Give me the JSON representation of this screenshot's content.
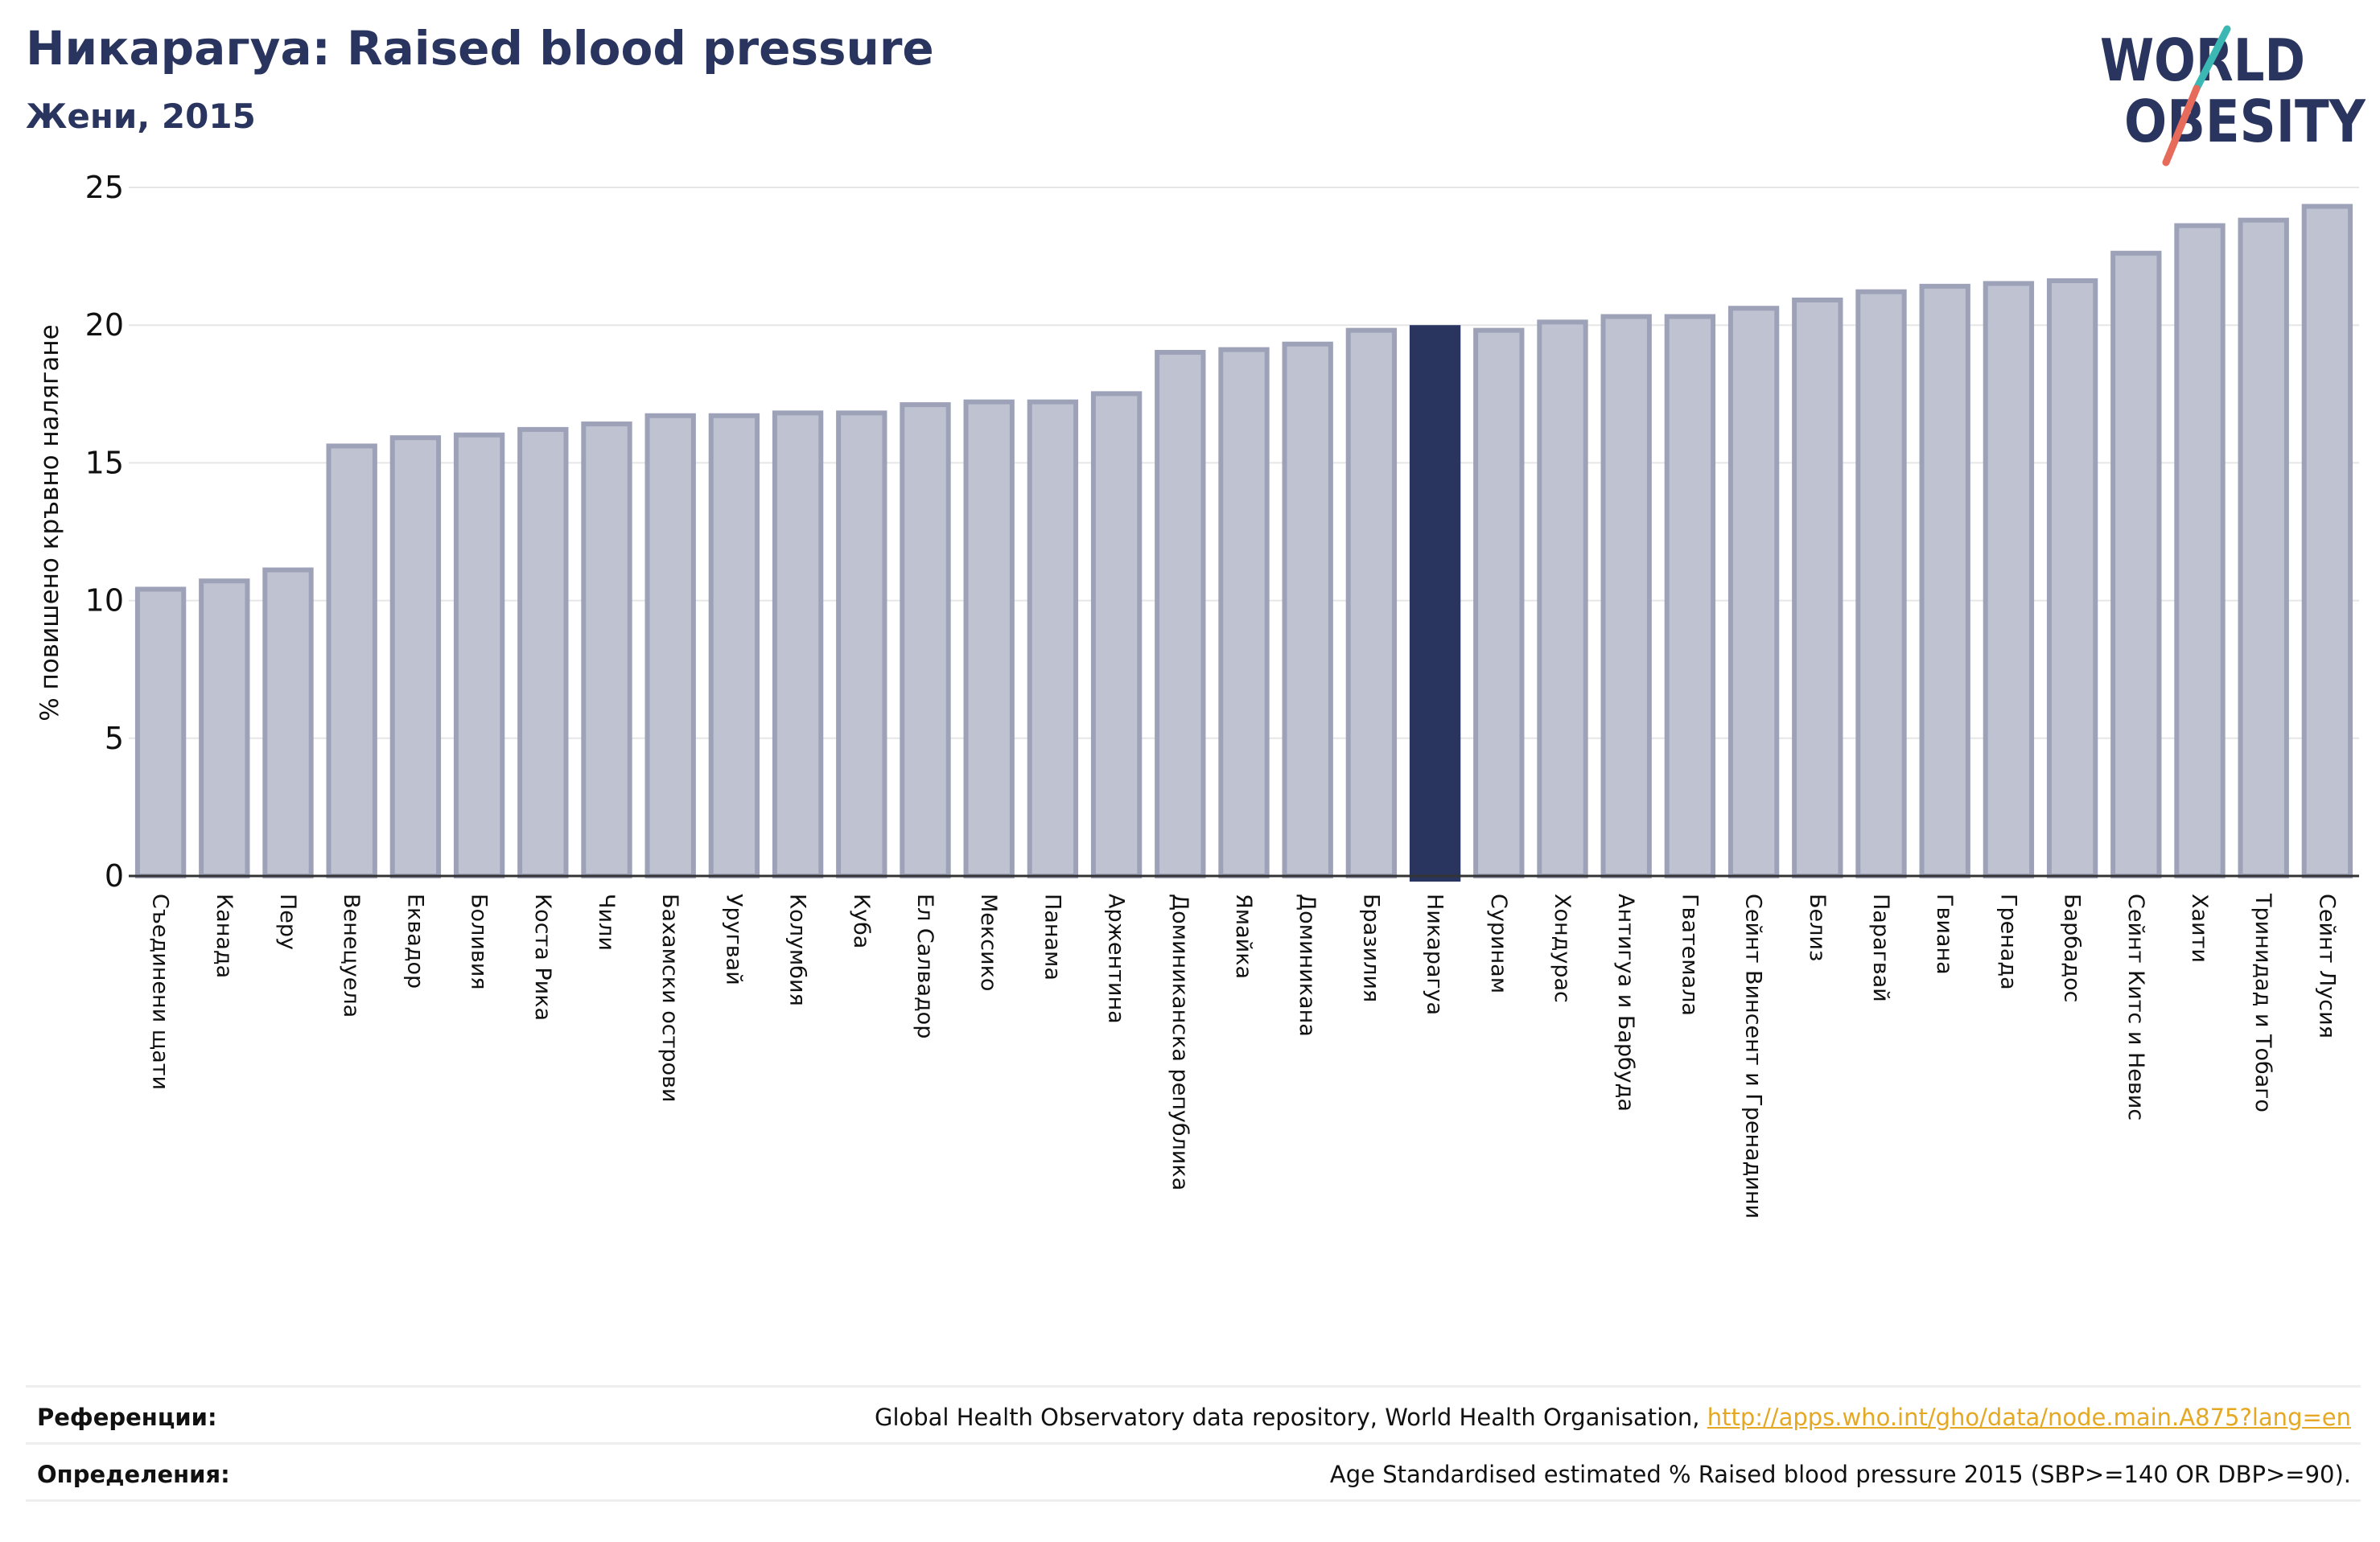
{
  "header": {
    "title": "Никарагуa: Raised blood pressure",
    "subtitle": "Жени, 2015"
  },
  "logo": {
    "line1": "WORLD",
    "line2": "OBESITY",
    "text_color": "#2a355f",
    "slash_teal": "#3bb8b4",
    "slash_red": "#e66b5b"
  },
  "colors": {
    "bar_fill": "#bfc2d0",
    "bar_stroke": "#9da2b9",
    "highlight_fill": "#2a355f",
    "axis": "#333333",
    "grid": "#e6e6e6"
  },
  "chart_data": {
    "type": "bar",
    "title": "Никарагуa: Raised blood pressure",
    "subtitle": "Жени, 2015",
    "xlabel": "",
    "ylabel": "% повишено кръвно налягане",
    "ylim": [
      0,
      25
    ],
    "yticks": [
      0,
      5,
      10,
      15,
      20,
      25
    ],
    "grid": true,
    "highlight": "Никарагуа",
    "categories": [
      "Съединени щати",
      "Канада",
      "Перу",
      "Венецуела",
      "Еквадор",
      "Боливия",
      "Коста Рика",
      "Чили",
      "Бахамски острови",
      "Уругвай",
      "Колумбия",
      "Куба",
      "Ел Салвадор",
      "Мексико",
      "Панама",
      "Аржентина",
      "Доминиканска република",
      "Ямайка",
      "Доминикана",
      "Бразилия",
      "Никарагуа",
      "Суринам",
      "Хондурас",
      "Антигуа и Барбуда",
      "Гватемала",
      "Сейнт Винсент и Гренадини",
      "Белиз",
      "Парагвай",
      "Гвиана",
      "Гренада",
      "Барбадос",
      "Сейнт Китс и Невис",
      "Хаити",
      "Тринидад и Тобаго",
      "Сейнт Лусия"
    ],
    "values": [
      10.5,
      10.8,
      11.2,
      15.7,
      16.0,
      16.1,
      16.3,
      16.5,
      16.8,
      16.8,
      16.9,
      16.9,
      17.2,
      17.3,
      17.3,
      17.6,
      19.1,
      19.2,
      19.4,
      19.9,
      20.0,
      19.9,
      20.2,
      20.4,
      20.4,
      20.7,
      21.0,
      21.3,
      21.5,
      21.6,
      21.7,
      22.7,
      23.7,
      23.9,
      24.4
    ]
  },
  "footer": {
    "references_label": "Референции:",
    "references_text": "Global Health Observatory data repository, World Health Organisation, ",
    "references_link": "http://apps.who.int/gho/data/node.main.A875?lang=en",
    "definitions_label": "Определения:",
    "definitions_text": "Age Standardised estimated % Raised blood pressure 2015 (SBP>=140 OR DBP>=90)."
  }
}
